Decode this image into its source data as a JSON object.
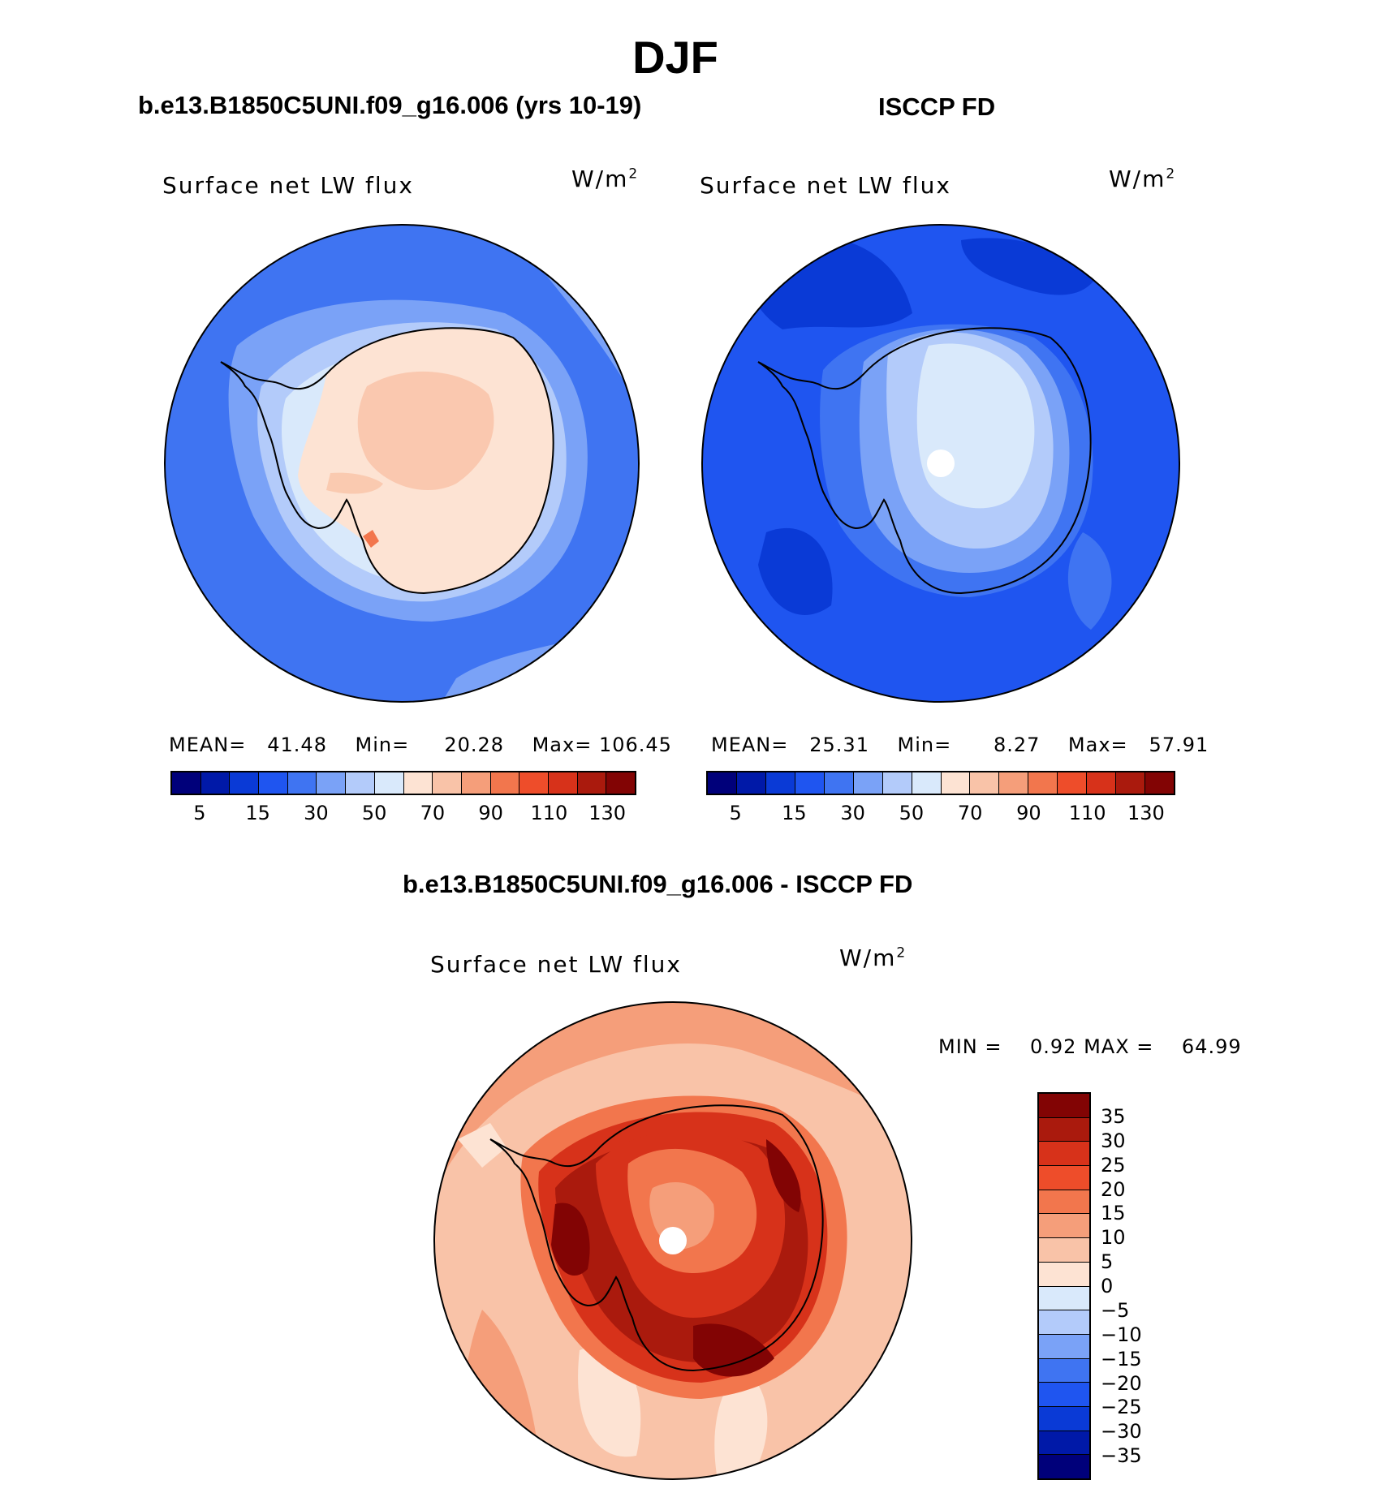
{
  "figure": {
    "main_title": "DJF"
  },
  "panels": [
    {
      "title": "b.e13.B1850C5UNI.f09_g16.006 (yrs 10-19)",
      "variable": "Surface net LW flux",
      "units": "W/m",
      "units_sup": "2",
      "stats": {
        "mean_label": "MEAN=",
        "mean": "41.48",
        "min_label": "Min=",
        "min": "20.28",
        "max_label": "Max=",
        "max": "106.45"
      },
      "colorbar_ticks": [
        "5",
        "15",
        "30",
        "50",
        "70",
        "90",
        "110",
        "130"
      ]
    },
    {
      "title": "ISCCP FD",
      "variable": "Surface net LW flux",
      "units": "W/m",
      "units_sup": "2",
      "stats": {
        "mean_label": "MEAN=",
        "mean": "25.31",
        "min_label": "Min=",
        "min": "8.27",
        "max_label": "Max=",
        "max": "57.91"
      },
      "colorbar_ticks": [
        "5",
        "15",
        "30",
        "50",
        "70",
        "90",
        "110",
        "130"
      ]
    },
    {
      "title": "b.e13.B1850C5UNI.f09_g16.006 - ISCCP FD",
      "variable": "Surface net LW flux",
      "units": "W/m",
      "units_sup": "2",
      "stats": {
        "min_label": "MIN =",
        "min": "0.92",
        "max_label": "MAX =",
        "max": "64.99"
      },
      "colorbar_ticks": [
        "35",
        "30",
        "25",
        "20",
        "15",
        "10",
        "5",
        "0",
        "−5",
        "−10",
        "−15",
        "−20",
        "−25",
        "−30",
        "−35"
      ]
    }
  ],
  "colors": {
    "abs_scale": [
      "#00007a",
      "#0019a8",
      "#0a3ad6",
      "#1f55f0",
      "#3f74f2",
      "#7aa2f7",
      "#b3cbfa",
      "#d9e9fb",
      "#fde3d3",
      "#f9c3a8",
      "#f59e7a",
      "#f2764d",
      "#ee4d2a",
      "#d7321a",
      "#aa1a0d",
      "#820404"
    ],
    "diff_scale": [
      "#820404",
      "#aa1a0d",
      "#d7321a",
      "#ee4d2a",
      "#f2764d",
      "#f59e7a",
      "#f9c3a8",
      "#fde3d3",
      "#d9e9fb",
      "#b3cbfa",
      "#7aa2f7",
      "#3f74f2",
      "#1f55f0",
      "#0a3ad6",
      "#0019a8",
      "#00007a"
    ]
  }
}
